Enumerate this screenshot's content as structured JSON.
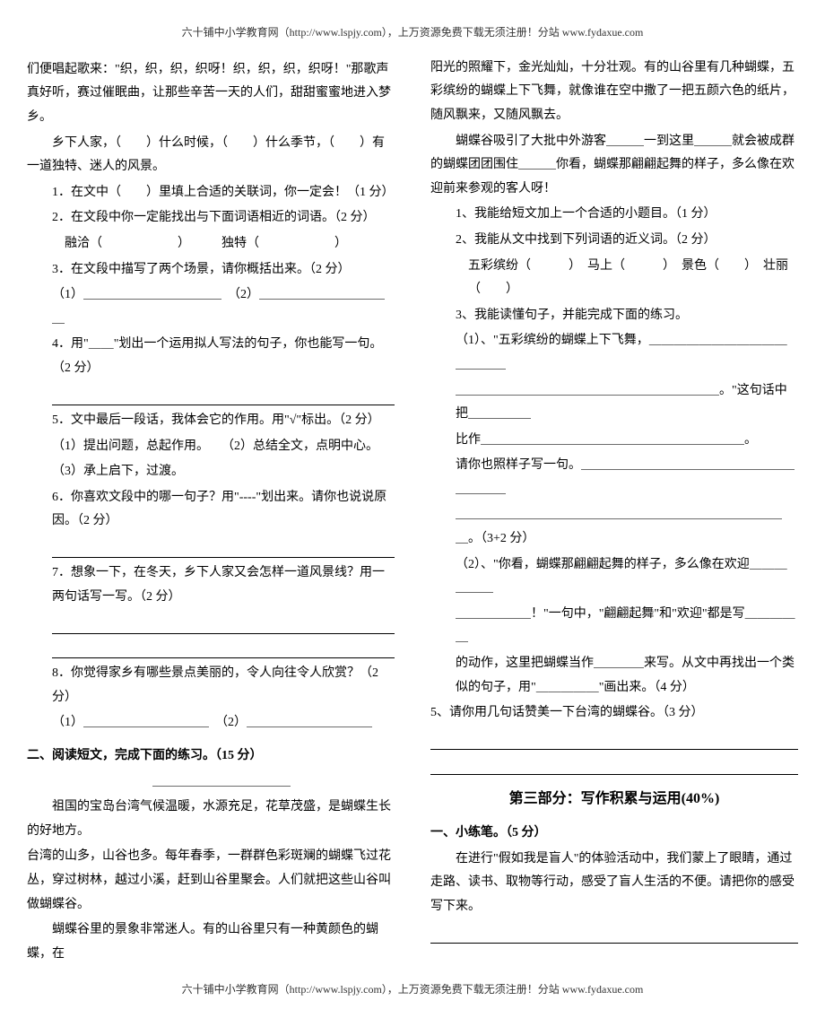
{
  "header": "六十铺中小学教育网（http://www.lspjy.com），上万资源免费下载无须注册！分站 www.fydaxue.com",
  "footer": "六十铺中小学教育网（http://www.lspjy.com），上万资源免费下载无须注册！分站 www.fydaxue.com",
  "left": {
    "p1": "们便唱起歌来：\"织，织，织，织呀！织，织，织，织呀！\"那歌声真好听，赛过催眠曲，让那些辛苦一天的人们，甜甜蜜蜜地进入梦乡。",
    "p2": "乡下人家，（　　）什么时候，（　　）什么季节，（　　）有一道独特、迷人的风景。",
    "q1": "1．在文中（　　）里填上合适的关联词，你一定会！（1 分）",
    "q2": "2．在文段中你一定能找出与下面词语相近的词语。（2 分）",
    "q2a": "融洽（　　　　　　）　　　独特（　　　　　　）",
    "q3": "3．在文段中描写了两个场景，请你概括出来。（2 分）",
    "q3a": "（1）＿＿＿＿＿＿＿＿＿＿＿　（2）＿＿＿＿＿＿＿＿＿＿＿",
    "q4": "4．用\"＿＿\"划出一个运用拟人写法的句子，你也能写一句。（2 分）",
    "q5": "5．文中最后一段话，我体会它的作用。用\"√\"标出。（2 分）",
    "q5a": "（1）提出问题，总起作用。　　（2）总结全文，点明中心。",
    "q5b": "（3）承上启下，过渡。",
    "q6": "6．你喜欢文段中的哪一句子？用\"----\"划出来。请你也说说原因。（2 分）",
    "q7": "7．想象一下，在冬天，乡下人家又会怎样一道风景线？用一两句话写一写。（2 分）",
    "q8": "8．你觉得家乡有哪些景点美丽的，令人向往令人欣赏？（2 分）",
    "q8a": "（1）＿＿＿＿＿＿＿＿＿＿　（2）＿＿＿＿＿＿＿＿＿＿",
    "sec2_title": "二、阅读短文，完成下面的练习。（15 分）",
    "sec2_p1": "祖国的宝岛台湾气候温暖，水源充足，花草茂盛，是蝴蝶生长的好地方。",
    "sec2_p2": "台湾的山多，山谷也多。每年春季，一群群色彩斑斓的蝴蝶飞过花丛，穿过树林，越过小溪，赶到山谷里聚会。人们就把这些山谷叫做蝴蝶谷。",
    "sec2_p3": "蝴蝶谷里的景象非常迷人。有的山谷里只有一种黄颜色的蝴蝶，在"
  },
  "right": {
    "p1": "阳光的照耀下，金光灿灿，十分壮观。有的山谷里有几种蝴蝶，五彩缤纷的蝴蝶上下飞舞，就像谁在空中撒了一把五颜六色的纸片，随风飘来，又随风飘去。",
    "p2": "蝴蝶谷吸引了大批中外游客＿＿＿一到这里＿＿＿就会被成群的蝴蝶团团围住＿＿＿你看，蝴蝶那翩翩起舞的样子，多么像在欢迎前来参观的客人呀！",
    "q1": "1、我能给短文加上一个合适的小题目。（1 分）",
    "q2": "2、我能从文中找到下列词语的近义词。（2 分）",
    "q2a": "五彩缤纷（　　　）　马上（　　　）　景色（　　）　壮丽（　　）",
    "q3": "3、我能读懂句子，并能完成下面的练习。",
    "q3a": "（1）、\"五彩缤纷的蝴蝶上下飞舞，＿＿＿＿＿＿＿＿＿＿＿＿＿＿＿",
    "q3b": "＿＿＿＿＿＿＿＿＿＿＿＿＿＿＿＿＿＿＿＿＿。\"这句话中把＿＿＿＿＿",
    "q3c": "比作＿＿＿＿＿＿＿＿＿＿＿＿＿＿＿＿＿＿＿＿＿。",
    "q3d": "请你也照样子写一句。＿＿＿＿＿＿＿＿＿＿＿＿＿＿＿＿＿＿＿＿＿",
    "q3e": "＿＿＿＿＿＿＿＿＿＿＿＿＿＿＿＿＿＿＿＿＿＿＿＿＿＿＿。（3+2 分）",
    "q3f": "（2）、\"你看，蝴蝶那翩翩起舞的样子，多么像在欢迎＿＿＿＿＿＿",
    "q3g": "＿＿＿＿＿＿！\"一句中，\"翩翩起舞\"和\"欢迎\"都是写＿＿＿＿＿",
    "q3h": "的动作，这里把蝴蝶当作＿＿＿＿来写。从文中再找出一个类似的句子，用\"＿＿＿＿＿\"画出来。（4 分）",
    "q5": "5、请你用几句话赞美一下台湾的蝴蝶谷。（3 分）",
    "part3": "第三部分：写作积累与运用(40%)",
    "sec1_title": "一、小练笔。（5 分）",
    "sec1_p1": "在进行\"假如我是盲人\"的体验活动中，我们蒙上了眼睛，通过走路、读书、取物等行动，感受了盲人生活的不便。请把你的感受写下来。"
  }
}
